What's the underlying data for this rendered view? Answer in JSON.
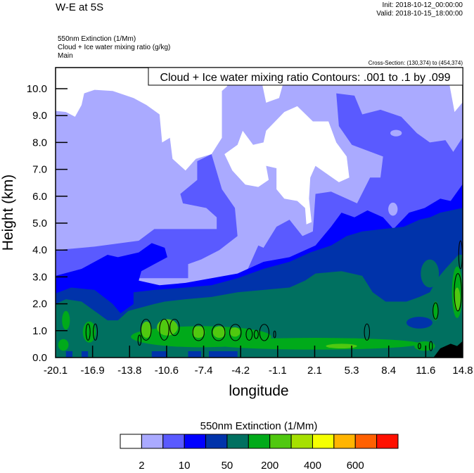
{
  "header": {
    "title": "W-E at 5S",
    "init": "Init: 2018-10-12_00:00:00",
    "valid": "Valid: 2018-10-15_18:00:00",
    "field1": "550nm Extinction   (1/Mm)",
    "field2": "Cloud + Ice water mixing ratio   (g/kg)",
    "field3": "Main",
    "cross_section": "Cross-Section: (130,374) to (454,374)"
  },
  "contour_label": "Cloud + Ice water mixing ratio Contours: .001 to .1 by .099",
  "chart_data": {
    "type": "heatmap",
    "title": "W-E at 5S",
    "xlabel": "longitude",
    "ylabel": "Height (km)",
    "xlim": [
      -20.1,
      14.8
    ],
    "ylim": [
      0,
      10.8
    ],
    "xticks": [
      "-20.1",
      "-16.9",
      "-13.8",
      "-10.6",
      "-7.4",
      "-4.2",
      "-1.1",
      "2.1",
      "5.3",
      "8.4",
      "11.6",
      "14.8"
    ],
    "yticks": [
      "0.0",
      "1.0",
      "2.0",
      "3.0",
      "4.0",
      "5.0",
      "6.0",
      "7.0",
      "8.0",
      "9.0",
      "10.0"
    ],
    "colorbar": {
      "title": "550nm Extinction  (1/Mm)",
      "colors": [
        "#ffffff",
        "#aaaaff",
        "#5a5aff",
        "#0000ff",
        "#0033aa",
        "#007060",
        "#00aa1a",
        "#50c810",
        "#a6e000",
        "#f5ff00",
        "#ffb400",
        "#ff6000",
        "#ff1000"
      ],
      "labels": [
        "2",
        "10",
        "50",
        "200",
        "400",
        "600"
      ]
    },
    "contours": {
      "field": "Cloud + Ice water mixing ratio",
      "min": 0.001,
      "max": 0.1,
      "interval": 0.099
    }
  }
}
